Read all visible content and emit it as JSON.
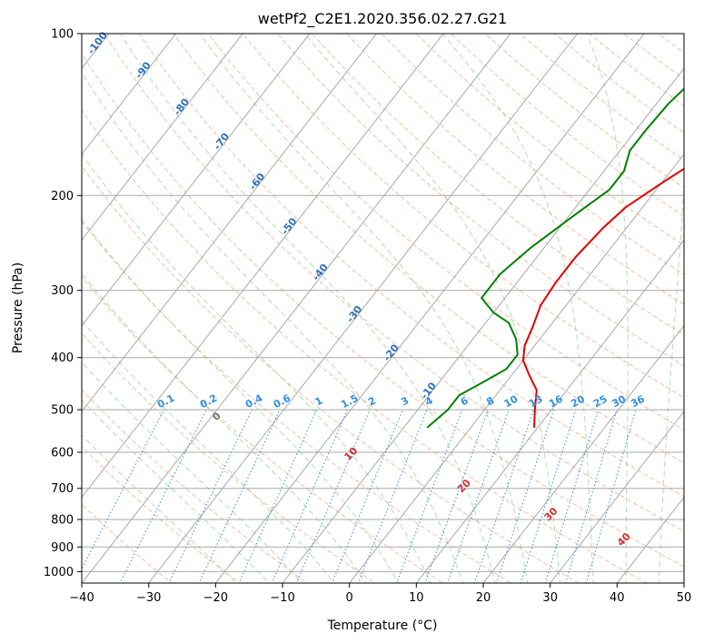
{
  "chart_data": {
    "type": "line",
    "title": "wetPf2_C2E1.2020.356.02.27.G21",
    "xlabel": "Temperature (°C)",
    "ylabel": "Pressure (hPa)",
    "xlim": [
      -40,
      50
    ],
    "ylim": [
      1050,
      100
    ],
    "y_scale": "log",
    "x_ticks": [
      "−40",
      "−30",
      "−20",
      "−10",
      "0",
      "10",
      "20",
      "30",
      "40",
      "50"
    ],
    "y_ticks": [
      "100",
      "200",
      "300",
      "400",
      "500",
      "600",
      "700",
      "800",
      "900",
      "1000"
    ],
    "grid": true,
    "series": [
      {
        "color": "#e00000",
        "points": [
          [
            9.5,
            540
          ],
          [
            7.5,
            500
          ],
          [
            5.5,
            460
          ],
          [
            2.5,
            430
          ],
          [
            0,
            405
          ],
          [
            -1.5,
            380
          ],
          [
            -2.5,
            350
          ],
          [
            -3.8,
            320
          ],
          [
            -4.2,
            290
          ],
          [
            -4.2,
            260
          ],
          [
            -3.5,
            230
          ],
          [
            -2.5,
            210
          ],
          [
            0,
            190
          ],
          [
            3,
            170
          ],
          [
            7,
            150
          ],
          [
            12,
            135
          ],
          [
            16,
            125
          ],
          [
            17.8,
            117
          ],
          [
            17.5,
            110
          ],
          [
            18,
            104
          ],
          [
            19,
            100
          ]
        ]
      },
      {
        "color": "#008000",
        "points": [
          [
            -6.5,
            540
          ],
          [
            -5.5,
            500
          ],
          [
            -5.5,
            470
          ],
          [
            -3.5,
            445
          ],
          [
            -1.5,
            420
          ],
          [
            -1.5,
            395
          ],
          [
            -3.5,
            370
          ],
          [
            -6.5,
            345
          ],
          [
            -10,
            330
          ],
          [
            -13.5,
            310
          ],
          [
            -13.5,
            280
          ],
          [
            -12,
            250
          ],
          [
            -9.5,
            220
          ],
          [
            -7,
            195
          ],
          [
            -7,
            180
          ],
          [
            -8.5,
            165
          ],
          [
            -8.5,
            150
          ],
          [
            -8.2,
            135
          ],
          [
            -7.5,
            125
          ],
          [
            -6.5,
            115
          ],
          [
            -2,
            104
          ],
          [
            0.5,
            100
          ]
        ]
      }
    ],
    "isotherm_labels": [
      "-100",
      "-90",
      "-80",
      "-70",
      "-60",
      "-50",
      "-40",
      "-30",
      "-20",
      "-10"
    ],
    "mixing_ratio_labels": [
      "0.1",
      "0.2",
      "0.4",
      "0.6",
      "1",
      "1.5",
      "2",
      "3",
      "4",
      "6",
      "8",
      "10",
      "13",
      "16",
      "20",
      "25",
      "30",
      "36"
    ],
    "moist_adiabat_labels": [
      "0",
      "10",
      "20",
      "30",
      "40"
    ]
  }
}
